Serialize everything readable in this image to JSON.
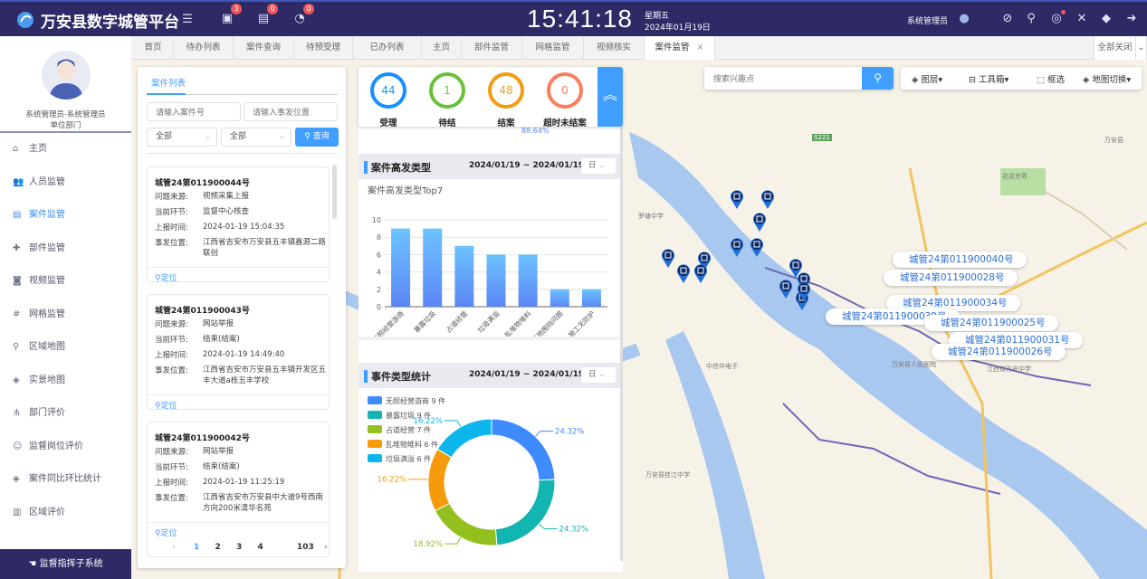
{
  "header": {
    "title": "万安县数字城管平台",
    "badges": {
      "todo": "3",
      "pending": "0",
      "timer": "0"
    },
    "time": "15:41:18",
    "weekday": "星期五",
    "date": "2024年01月19日",
    "user": "系统管理员"
  },
  "sidebar": {
    "user_name": "系统管理员-系统管理员",
    "dept": "单位部门",
    "items": [
      {
        "label": "主页",
        "icon": "home-icon"
      },
      {
        "label": "人员监管",
        "icon": "users-icon"
      },
      {
        "label": "案件监管",
        "icon": "list-icon",
        "active": true
      },
      {
        "label": "部件监管",
        "icon": "puzzle-icon"
      },
      {
        "label": "视频监管",
        "icon": "camera-icon"
      },
      {
        "label": "网格监管",
        "icon": "grid-icon"
      },
      {
        "label": "区域地图",
        "icon": "map-pin-icon"
      },
      {
        "label": "实景地图",
        "icon": "layers-icon"
      },
      {
        "label": "部门评价",
        "icon": "sitemap-icon"
      },
      {
        "label": "监督岗位评价",
        "icon": "user-badge-icon"
      },
      {
        "label": "案件同比环比统计",
        "icon": "layers-icon"
      },
      {
        "label": "区域评价",
        "icon": "bar-chart-icon"
      }
    ],
    "footer": "监督指挥子系统"
  },
  "tabs": [
    {
      "label": "首页"
    },
    {
      "label": "待办列表"
    },
    {
      "label": "案件查询"
    },
    {
      "label": "待预受理"
    },
    {
      "label": "已办列表"
    },
    {
      "label": "主页"
    },
    {
      "label": "部件监管"
    },
    {
      "label": "网格监管"
    },
    {
      "label": "视频核实"
    },
    {
      "label": "案件监管",
      "active": true
    }
  ],
  "tabs_close_all": "全部关闭",
  "case_list": {
    "tab": "案件列表",
    "case_no_placeholder": "请输入案件号",
    "location_placeholder": "请输入事发位置",
    "filter1": "全部",
    "filter2": "全部",
    "query": "查询",
    "field_labels": {
      "source": "问题来源:",
      "stage": "当前环节:",
      "time": "上报时间:",
      "location": "事发位置:"
    },
    "locate": "定位",
    "cases": [
      {
        "no": "城管24第011900044号",
        "source": "视频采集上报",
        "stage": "监督中心核查",
        "time": "2024-01-19 15:04:35",
        "location": "江西省吉安市万安县五丰镇鑫源二路联创"
      },
      {
        "no": "城管24第011900043号",
        "source": "网站举报",
        "stage": "结束(结案)",
        "time": "2024-01-19 14:49:40",
        "location": "江西省吉安市万安县五丰镇开发区五丰大道a栋五丰学校"
      },
      {
        "no": "城管24第011900042号",
        "source": "网站举报",
        "stage": "结束(结案)",
        "time": "2024-01-19 11:25:19",
        "location": "江西省吉安市万安县中大道9号西南方向200米清华名苑"
      }
    ],
    "pagination": {
      "pages": [
        "1",
        "2",
        "3",
        "4"
      ],
      "last": "103",
      "current": "1"
    }
  },
  "stats": [
    {
      "label": "受理",
      "value": "44",
      "color": "#1890ff"
    },
    {
      "label": "待结",
      "value": "1",
      "color": "#67c23a"
    },
    {
      "label": "结案",
      "value": "48",
      "color": "#f39c12"
    },
    {
      "label": "超时未结案",
      "value": "0",
      "color": "#fa7e5c"
    }
  ],
  "stats_partial_label": "88.64%",
  "bar_section": {
    "title": "案件高发类型",
    "date_range": "2024/01/19 ~ 2024/01/19",
    "period": "日"
  },
  "pie_section": {
    "title": "事件类型统计",
    "date_range": "2024/01/19 ~ 2024/01/19",
    "period": "日"
  },
  "chart_data": [
    {
      "type": "bar",
      "title": "案件高发类型Top7",
      "categories": [
        "无照经营游商",
        "暴露垃圾",
        "占道经营",
        "垃圾满溢",
        "乱堆物堆料",
        "施工工地围挡问题",
        "施工无防护"
      ],
      "values": [
        9,
        9,
        7,
        6,
        6,
        2,
        2
      ],
      "ylim": [
        0,
        10
      ],
      "yticks": [
        0,
        2,
        4,
        6,
        8,
        10
      ],
      "grid": true,
      "color": "#5b8ff9"
    },
    {
      "type": "pie",
      "variant": "donut",
      "legend_position": "top-left",
      "unit": "件",
      "slices": [
        {
          "name": "无照经营游商",
          "value": 9,
          "percent": "24.32%",
          "color": "#3d8bfd"
        },
        {
          "name": "暴露垃圾",
          "value": 9,
          "percent": "24.32%",
          "color": "#13b5b1"
        },
        {
          "name": "占道经营",
          "value": 7,
          "percent": "18.92%",
          "color": "#93c01f"
        },
        {
          "name": "乱堆物堆料",
          "value": 6,
          "percent": "16.22%",
          "color": "#f59a0b"
        },
        {
          "name": "垃圾满溢",
          "value": 6,
          "percent": "16.22%",
          "color": "#0cb6ec"
        }
      ]
    }
  ],
  "map": {
    "search_placeholder": "搜索兴趣点",
    "tools": {
      "layers": "图层",
      "toolbox": "工具箱",
      "select": "框选",
      "switch": "地图切换"
    },
    "markers": [
      "城管24第011900040号",
      "城管24第011900028号",
      "城管24第011900034号",
      "城管24第011900039号",
      "城管24第011900025号",
      "城管24第011900031号",
      "城管24第011900026号"
    ],
    "labels": [
      "罗塘中学",
      "花花世界",
      "中信华电子",
      "万安县人民医院",
      "江西省万安中学",
      "万安县桂江中学",
      "S221",
      "万安县"
    ]
  }
}
